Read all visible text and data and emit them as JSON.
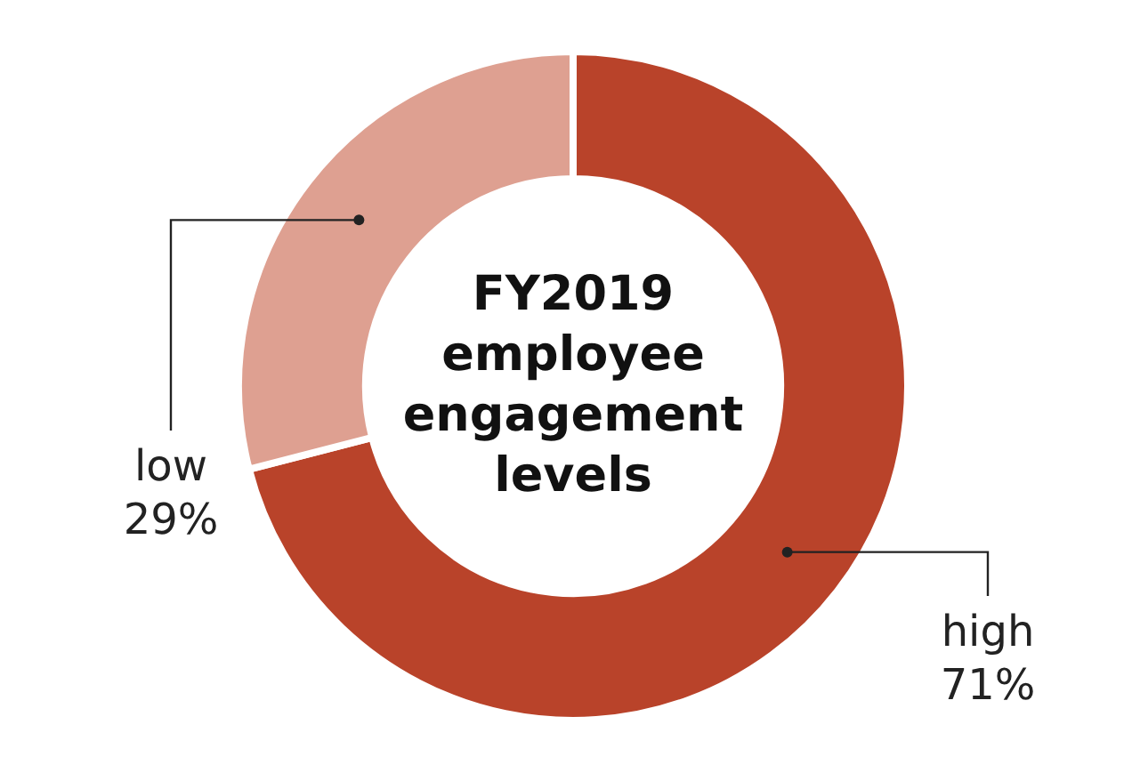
{
  "chart_data": {
    "type": "donut",
    "title": "FY2019 employee engagement levels",
    "categories": [
      "high",
      "low"
    ],
    "values": [
      71,
      29
    ],
    "colors": [
      "#b9432a",
      "#dea091"
    ],
    "value_labels": [
      "71%",
      "29%"
    ],
    "legend": false
  }
}
